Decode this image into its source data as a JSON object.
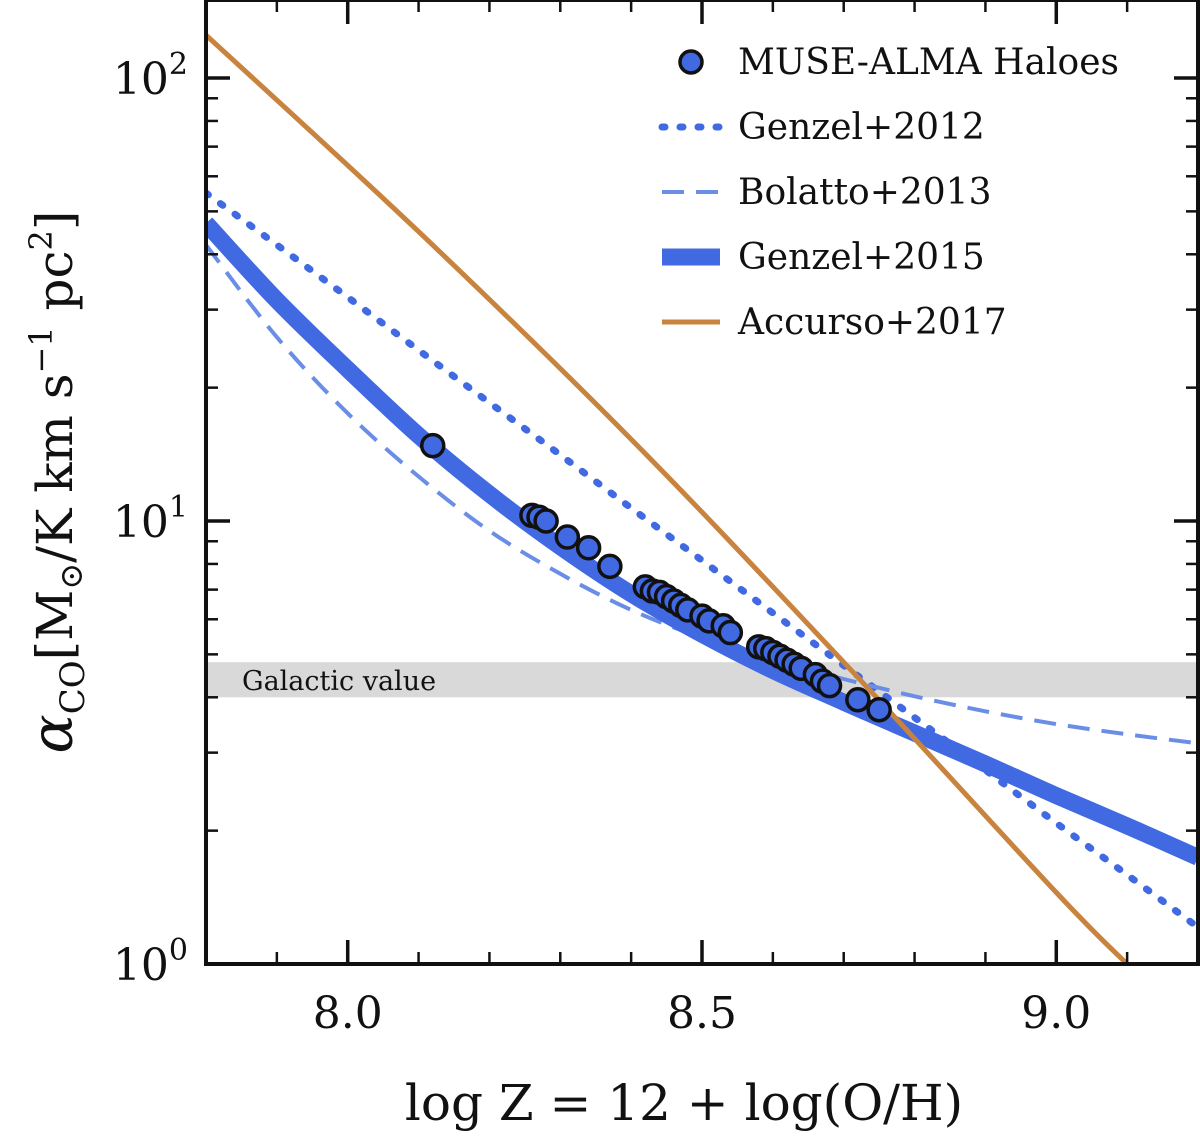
{
  "chart_data": {
    "type": "line",
    "xlabel": "log Z = 12 + log(O/H)",
    "ylabel": "αCO [M☉/K km s⁻¹ pc²]",
    "ylabel_parts": {
      "symbol": "α",
      "symbol_sub": "CO",
      "open": "[M",
      "sun_sub": "⊙",
      "mid": "/K km s",
      "exp": "−1",
      "pc": " pc",
      "pc_exp": "2",
      "close": "]"
    },
    "xlim": [
      7.8,
      9.2
    ],
    "ylim": [
      1,
      150
    ],
    "yscale": "log",
    "x_ticks": [
      {
        "value": 8.0,
        "label": "8.0"
      },
      {
        "value": 8.5,
        "label": "8.5"
      },
      {
        "value": 9.0,
        "label": "9.0"
      }
    ],
    "y_ticks": [
      {
        "value": 1,
        "base": "10",
        "exp": "0"
      },
      {
        "value": 10,
        "base": "10",
        "exp": "1"
      },
      {
        "value": 100,
        "base": "10",
        "exp": "2"
      }
    ],
    "band": {
      "label": "Galactic value",
      "y_range": [
        4.0,
        4.8
      ],
      "color": "#d9d9d9"
    },
    "legend_position": "top-right",
    "legend": [
      {
        "key": "muse",
        "label": "MUSE-ALMA Haloes",
        "style": "marker"
      },
      {
        "key": "g12",
        "label": "Genzel+2012",
        "style": "dotted"
      },
      {
        "key": "b13",
        "label": "Bolatto+2013",
        "style": "dashed"
      },
      {
        "key": "g15",
        "label": "Genzel+2015",
        "style": "thick"
      },
      {
        "key": "a17",
        "label": "Accurso+2017",
        "style": "solid"
      }
    ],
    "colors": {
      "blue": "#4169e1",
      "light_blue": "#6a8ee6",
      "orange": "#c8843f",
      "marker_edge": "#111111"
    },
    "series": [
      {
        "name": "Genzel+2012",
        "key": "g12",
        "x": [
          7.8,
          7.9,
          8.0,
          8.1,
          8.2,
          8.3,
          8.4,
          8.5,
          8.6,
          8.7,
          8.8,
          8.9,
          9.0,
          9.1,
          9.2
        ],
        "y": [
          55.0,
          42.0,
          32.0,
          24.3,
          18.5,
          14.1,
          10.7,
          8.15,
          6.2,
          4.72,
          3.6,
          2.74,
          2.08,
          1.59,
          1.21
        ]
      },
      {
        "name": "Bolatto+2013",
        "key": "b13",
        "x": [
          7.8,
          7.9,
          8.0,
          8.1,
          8.2,
          8.3,
          8.4,
          8.5,
          8.6,
          8.7,
          8.8,
          8.9,
          9.0,
          9.1,
          9.2
        ],
        "y": [
          42.0,
          26.0,
          17.5,
          12.6,
          9.5,
          7.6,
          6.3,
          5.45,
          4.85,
          4.4,
          4.02,
          3.72,
          3.48,
          3.3,
          3.15
        ]
      },
      {
        "name": "Genzel+2015",
        "key": "g15",
        "x": [
          7.8,
          7.9,
          8.0,
          8.1,
          8.2,
          8.3,
          8.4,
          8.5,
          8.6,
          8.7,
          8.8,
          8.9,
          9.0,
          9.1,
          9.2
        ],
        "y": [
          47.0,
          31.5,
          22.0,
          15.6,
          11.5,
          8.75,
          6.85,
          5.55,
          4.6,
          3.9,
          3.32,
          2.83,
          2.4,
          2.05,
          1.74
        ]
      },
      {
        "name": "Accurso+2017",
        "key": "a17",
        "x": [
          7.8,
          8.1,
          8.4,
          8.7,
          9.0,
          9.1
        ],
        "y": [
          125.0,
          45.0,
          15.3,
          4.8,
          1.45,
          1.0
        ]
      }
    ],
    "points": {
      "name": "MUSE-ALMA Haloes",
      "x": [
        8.12,
        8.26,
        8.27,
        8.28,
        8.31,
        8.34,
        8.37,
        8.42,
        8.43,
        8.44,
        8.45,
        8.46,
        8.47,
        8.48,
        8.5,
        8.51,
        8.53,
        8.54,
        8.58,
        8.59,
        8.6,
        8.61,
        8.62,
        8.63,
        8.64,
        8.66,
        8.67,
        8.68,
        8.72,
        8.75
      ],
      "y": [
        14.8,
        10.3,
        10.2,
        10.0,
        9.2,
        8.7,
        7.9,
        7.1,
        6.95,
        6.9,
        6.75,
        6.6,
        6.45,
        6.3,
        6.1,
        5.95,
        5.8,
        5.6,
        5.2,
        5.15,
        5.05,
        4.95,
        4.85,
        4.75,
        4.65,
        4.5,
        4.35,
        4.25,
        3.95,
        3.75
      ]
    }
  }
}
